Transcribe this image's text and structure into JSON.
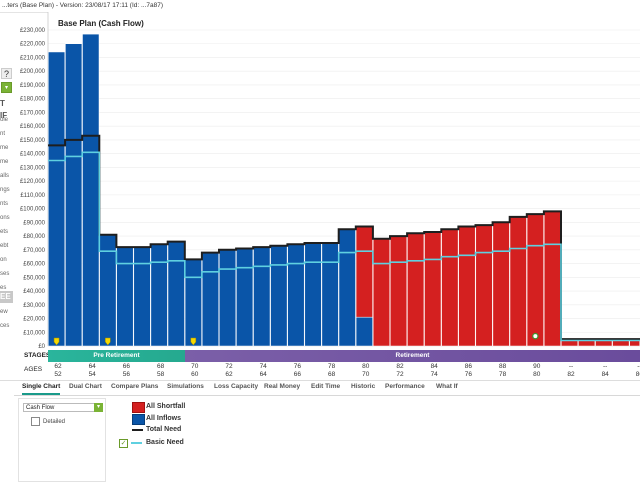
{
  "window": {
    "title": "...ters (Base Plan) - Version: 23/08/17 17:11 (Id: ...7a87)"
  },
  "left_strip": {
    "help_label": "?",
    "section_heading": "T IF",
    "section_heading_2": "EE",
    "fragments": [
      "ole",
      "nt",
      "me",
      "me",
      "alls",
      "ngs",
      "nts",
      "ons",
      "ets",
      "ebt",
      "on",
      "ses",
      "es",
      "ces",
      "ew",
      "ces"
    ]
  },
  "chart_data": {
    "type": "bar",
    "title": "Base Plan  (Cash Flow)",
    "ylim": [
      0,
      230000
    ],
    "yticks": [
      0,
      10000,
      20000,
      30000,
      40000,
      50000,
      60000,
      70000,
      80000,
      90000,
      100000,
      110000,
      120000,
      130000,
      140000,
      150000,
      160000,
      170000,
      180000,
      190000,
      200000,
      210000,
      220000,
      230000
    ],
    "ytick_labels": [
      "£0",
      "£10,000",
      "£20,000",
      "£30,000",
      "£40,000",
      "£50,000",
      "£60,000",
      "£70,000",
      "£80,000",
      "£90,000",
      "£100,000",
      "£110,000",
      "£120,000",
      "£130,000",
      "£140,000",
      "£150,000",
      "£160,000",
      "£170,000",
      "£180,000",
      "£190,000",
      "£200,000",
      "£210,000",
      "£220,000",
      "£230,000"
    ],
    "ages": [
      62,
      63,
      64,
      65,
      66,
      67,
      68,
      69,
      70,
      71,
      72,
      73,
      74,
      75,
      76,
      77,
      78,
      79,
      80,
      81,
      82,
      83,
      84,
      85,
      86,
      87,
      88,
      89,
      90,
      91,
      92,
      93,
      94,
      95,
      96,
      97
    ],
    "series": [
      {
        "name": "All Inflows",
        "color": "#0a55a8",
        "values": [
          214000,
          220000,
          227000,
          81000,
          72000,
          72000,
          74000,
          76000,
          63000,
          68000,
          70000,
          71000,
          72000,
          73000,
          74000,
          75000,
          75000,
          85000,
          21000,
          0,
          0,
          0,
          0,
          0,
          0,
          0,
          0,
          0,
          0,
          0,
          0,
          0,
          0,
          0,
          0,
          0
        ]
      },
      {
        "name": "All Shortfall",
        "color": "#d42020",
        "values": [
          0,
          0,
          0,
          0,
          0,
          0,
          0,
          0,
          0,
          0,
          0,
          0,
          0,
          0,
          0,
          0,
          0,
          0,
          66000,
          78000,
          80000,
          82000,
          83000,
          85000,
          87000,
          88000,
          90000,
          94000,
          96000,
          98000,
          5000,
          5000,
          5000,
          5000,
          5000,
          5000
        ]
      },
      {
        "name": "Total Need",
        "color": "#1e1e1e",
        "values": [
          146000,
          150000,
          153000,
          81000,
          72000,
          72000,
          74000,
          76000,
          63000,
          68000,
          70000,
          71000,
          72000,
          73000,
          74000,
          75000,
          75000,
          85000,
          87000,
          78000,
          80000,
          82000,
          83000,
          85000,
          87000,
          88000,
          90000,
          94000,
          96000,
          98000,
          5000,
          5000,
          5000,
          5000,
          5000,
          5000
        ]
      },
      {
        "name": "Basic Need",
        "color": "#5fd0e0",
        "values": [
          135000,
          138000,
          141000,
          69000,
          60000,
          60000,
          61000,
          62000,
          50000,
          54000,
          56000,
          57000,
          58000,
          59000,
          60000,
          61000,
          61000,
          68000,
          69000,
          60000,
          61000,
          62000,
          63000,
          65000,
          66000,
          68000,
          69000,
          71000,
          73000,
          74000,
          4000,
          4000,
          4000,
          4000,
          4000,
          4000
        ]
      }
    ],
    "markers": [
      {
        "age": 62,
        "type": "yellow-pin"
      },
      {
        "age": 65,
        "type": "yellow-pin"
      },
      {
        "age": 70,
        "type": "yellow-pin"
      },
      {
        "age": 90,
        "type": "green-circle"
      }
    ],
    "grid": true
  },
  "stages": {
    "label": "STAGES",
    "items": [
      {
        "name": "Pre Retirement",
        "color": "#2ab59c"
      },
      {
        "name": "Retirement",
        "color": "#7b5fa8"
      }
    ]
  },
  "ages_row": {
    "label": "AGES",
    "columns": [
      [
        "62",
        "52"
      ],
      [
        "64",
        "54"
      ],
      [
        "66",
        "56"
      ],
      [
        "68",
        "58"
      ],
      [
        "70",
        "60"
      ],
      [
        "72",
        "62"
      ],
      [
        "74",
        "64"
      ],
      [
        "76",
        "66"
      ],
      [
        "78",
        "68"
      ],
      [
        "80",
        "70"
      ],
      [
        "82",
        "72"
      ],
      [
        "84",
        "74"
      ],
      [
        "86",
        "76"
      ],
      [
        "88",
        "78"
      ],
      [
        "90",
        "80"
      ],
      [
        "--",
        "82"
      ],
      [
        "--",
        "84"
      ],
      [
        "--",
        "86"
      ]
    ]
  },
  "tabs": [
    {
      "label": "Single Chart",
      "active": true
    },
    {
      "label": "Dual Chart",
      "active": false
    },
    {
      "label": "Compare Plans",
      "active": false
    },
    {
      "label": "Simulations",
      "active": false
    },
    {
      "label": "Loss Capacity",
      "active": false
    },
    {
      "label": "Real Money",
      "active": false
    },
    {
      "label": "Edit Time",
      "active": false
    },
    {
      "label": "Historic",
      "active": false
    },
    {
      "label": "Performance",
      "active": false
    },
    {
      "label": "What If",
      "active": false
    }
  ],
  "panel": {
    "chart_select": "Cash Flow",
    "detailed_label": "Detailed"
  },
  "legend": {
    "all_shortfall": "All Shortfall",
    "all_inflows": "All Inflows",
    "total_need": "Total Need",
    "basic_need": "Basic Need"
  }
}
